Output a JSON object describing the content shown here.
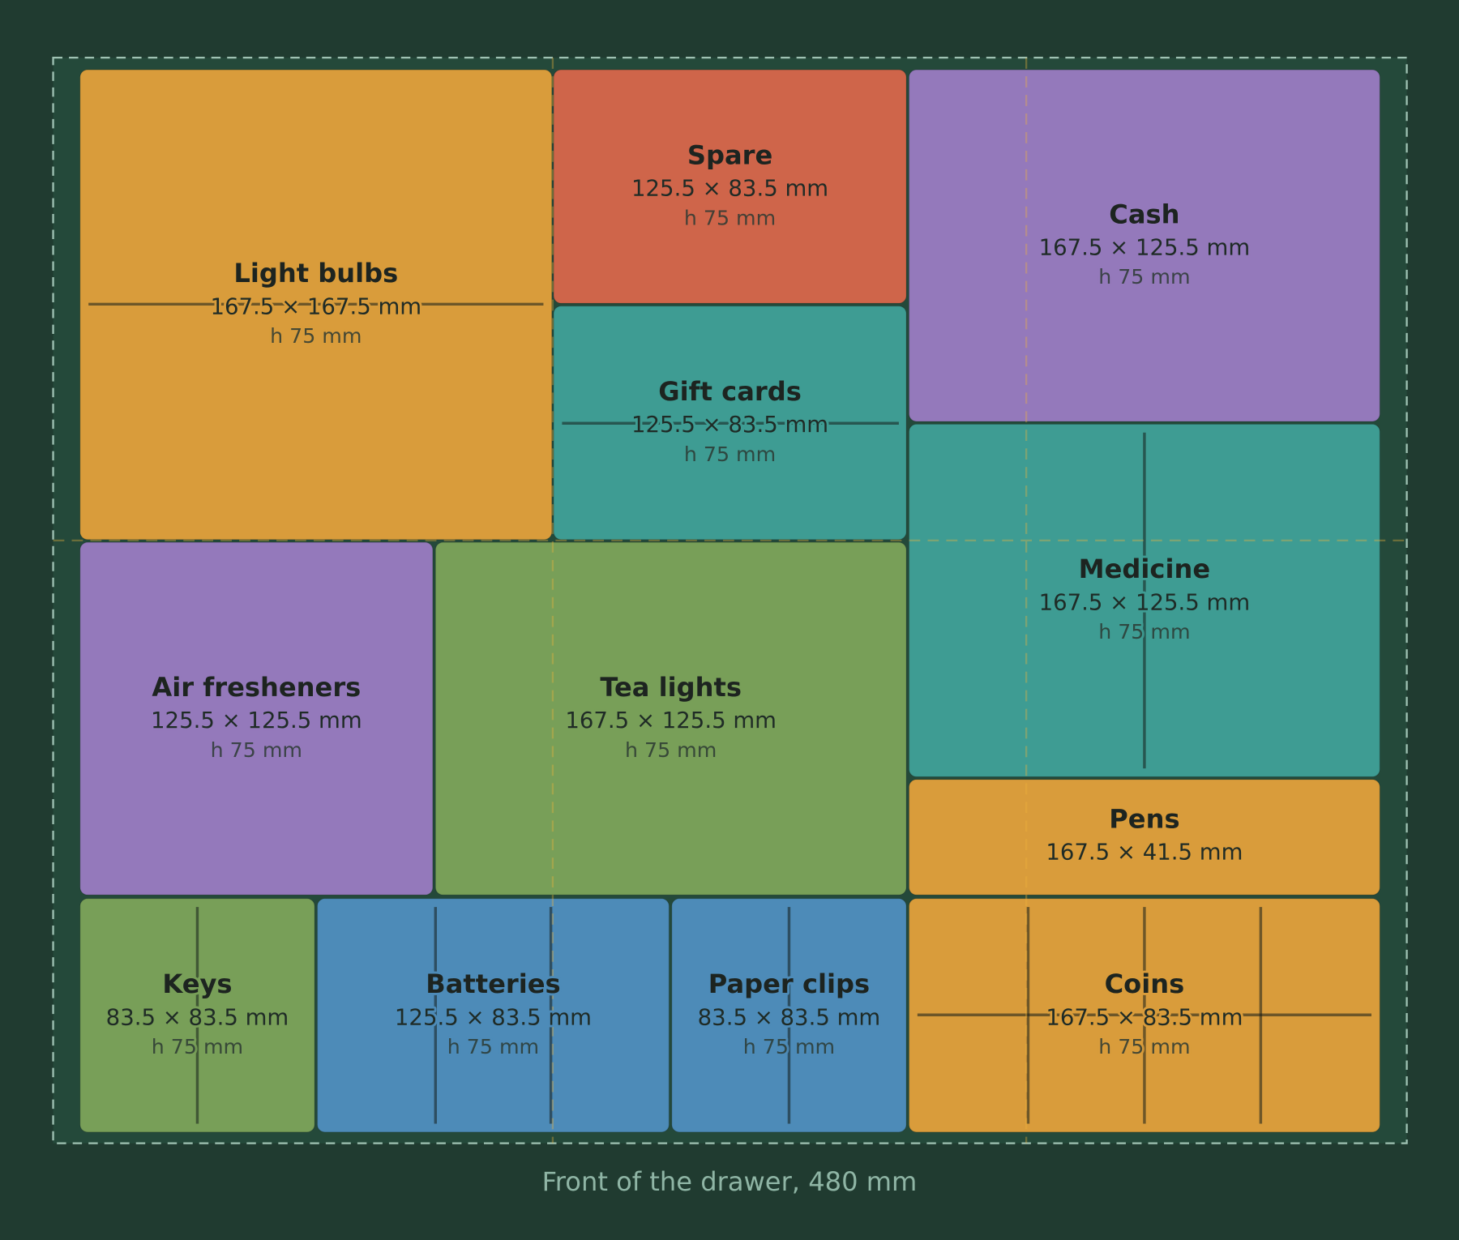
{
  "boxes": [
    {
      "name": "Light bulbs",
      "size": "167.5 × 167.5 mm",
      "height": "h 75 mm"
    },
    {
      "name": "Spare",
      "size": "125.5 × 83.5 mm",
      "height": "h 75 mm"
    },
    {
      "name": "Gift cards",
      "size": "125.5 × 83.5 mm",
      "height": "h 75 mm"
    },
    {
      "name": "Cash",
      "size": "167.5 × 125.5 mm",
      "height": "h 75 mm"
    },
    {
      "name": "Medicine",
      "size": "167.5 × 125.5 mm",
      "height": "h 75 mm"
    },
    {
      "name": "Pens",
      "size": "167.5 × 41.5 mm"
    },
    {
      "name": "Air fresheners",
      "size": "125.5 × 125.5 mm",
      "height": "h 75 mm"
    },
    {
      "name": "Tea lights",
      "size": "167.5 × 125.5 mm",
      "height": "h 75 mm"
    },
    {
      "name": "Keys",
      "size": "83.5 × 83.5 mm",
      "height": "h 75 mm"
    },
    {
      "name": "Batteries",
      "size": "125.5 × 83.5 mm",
      "height": "h 75 mm"
    },
    {
      "name": "Paper clips",
      "size": "83.5 × 83.5 mm",
      "height": "h 75 mm"
    },
    {
      "name": "Coins",
      "size": "167.5 × 83.5 mm",
      "height": "h 75 mm"
    }
  ],
  "caption": "Front of the drawer, 480 mm"
}
